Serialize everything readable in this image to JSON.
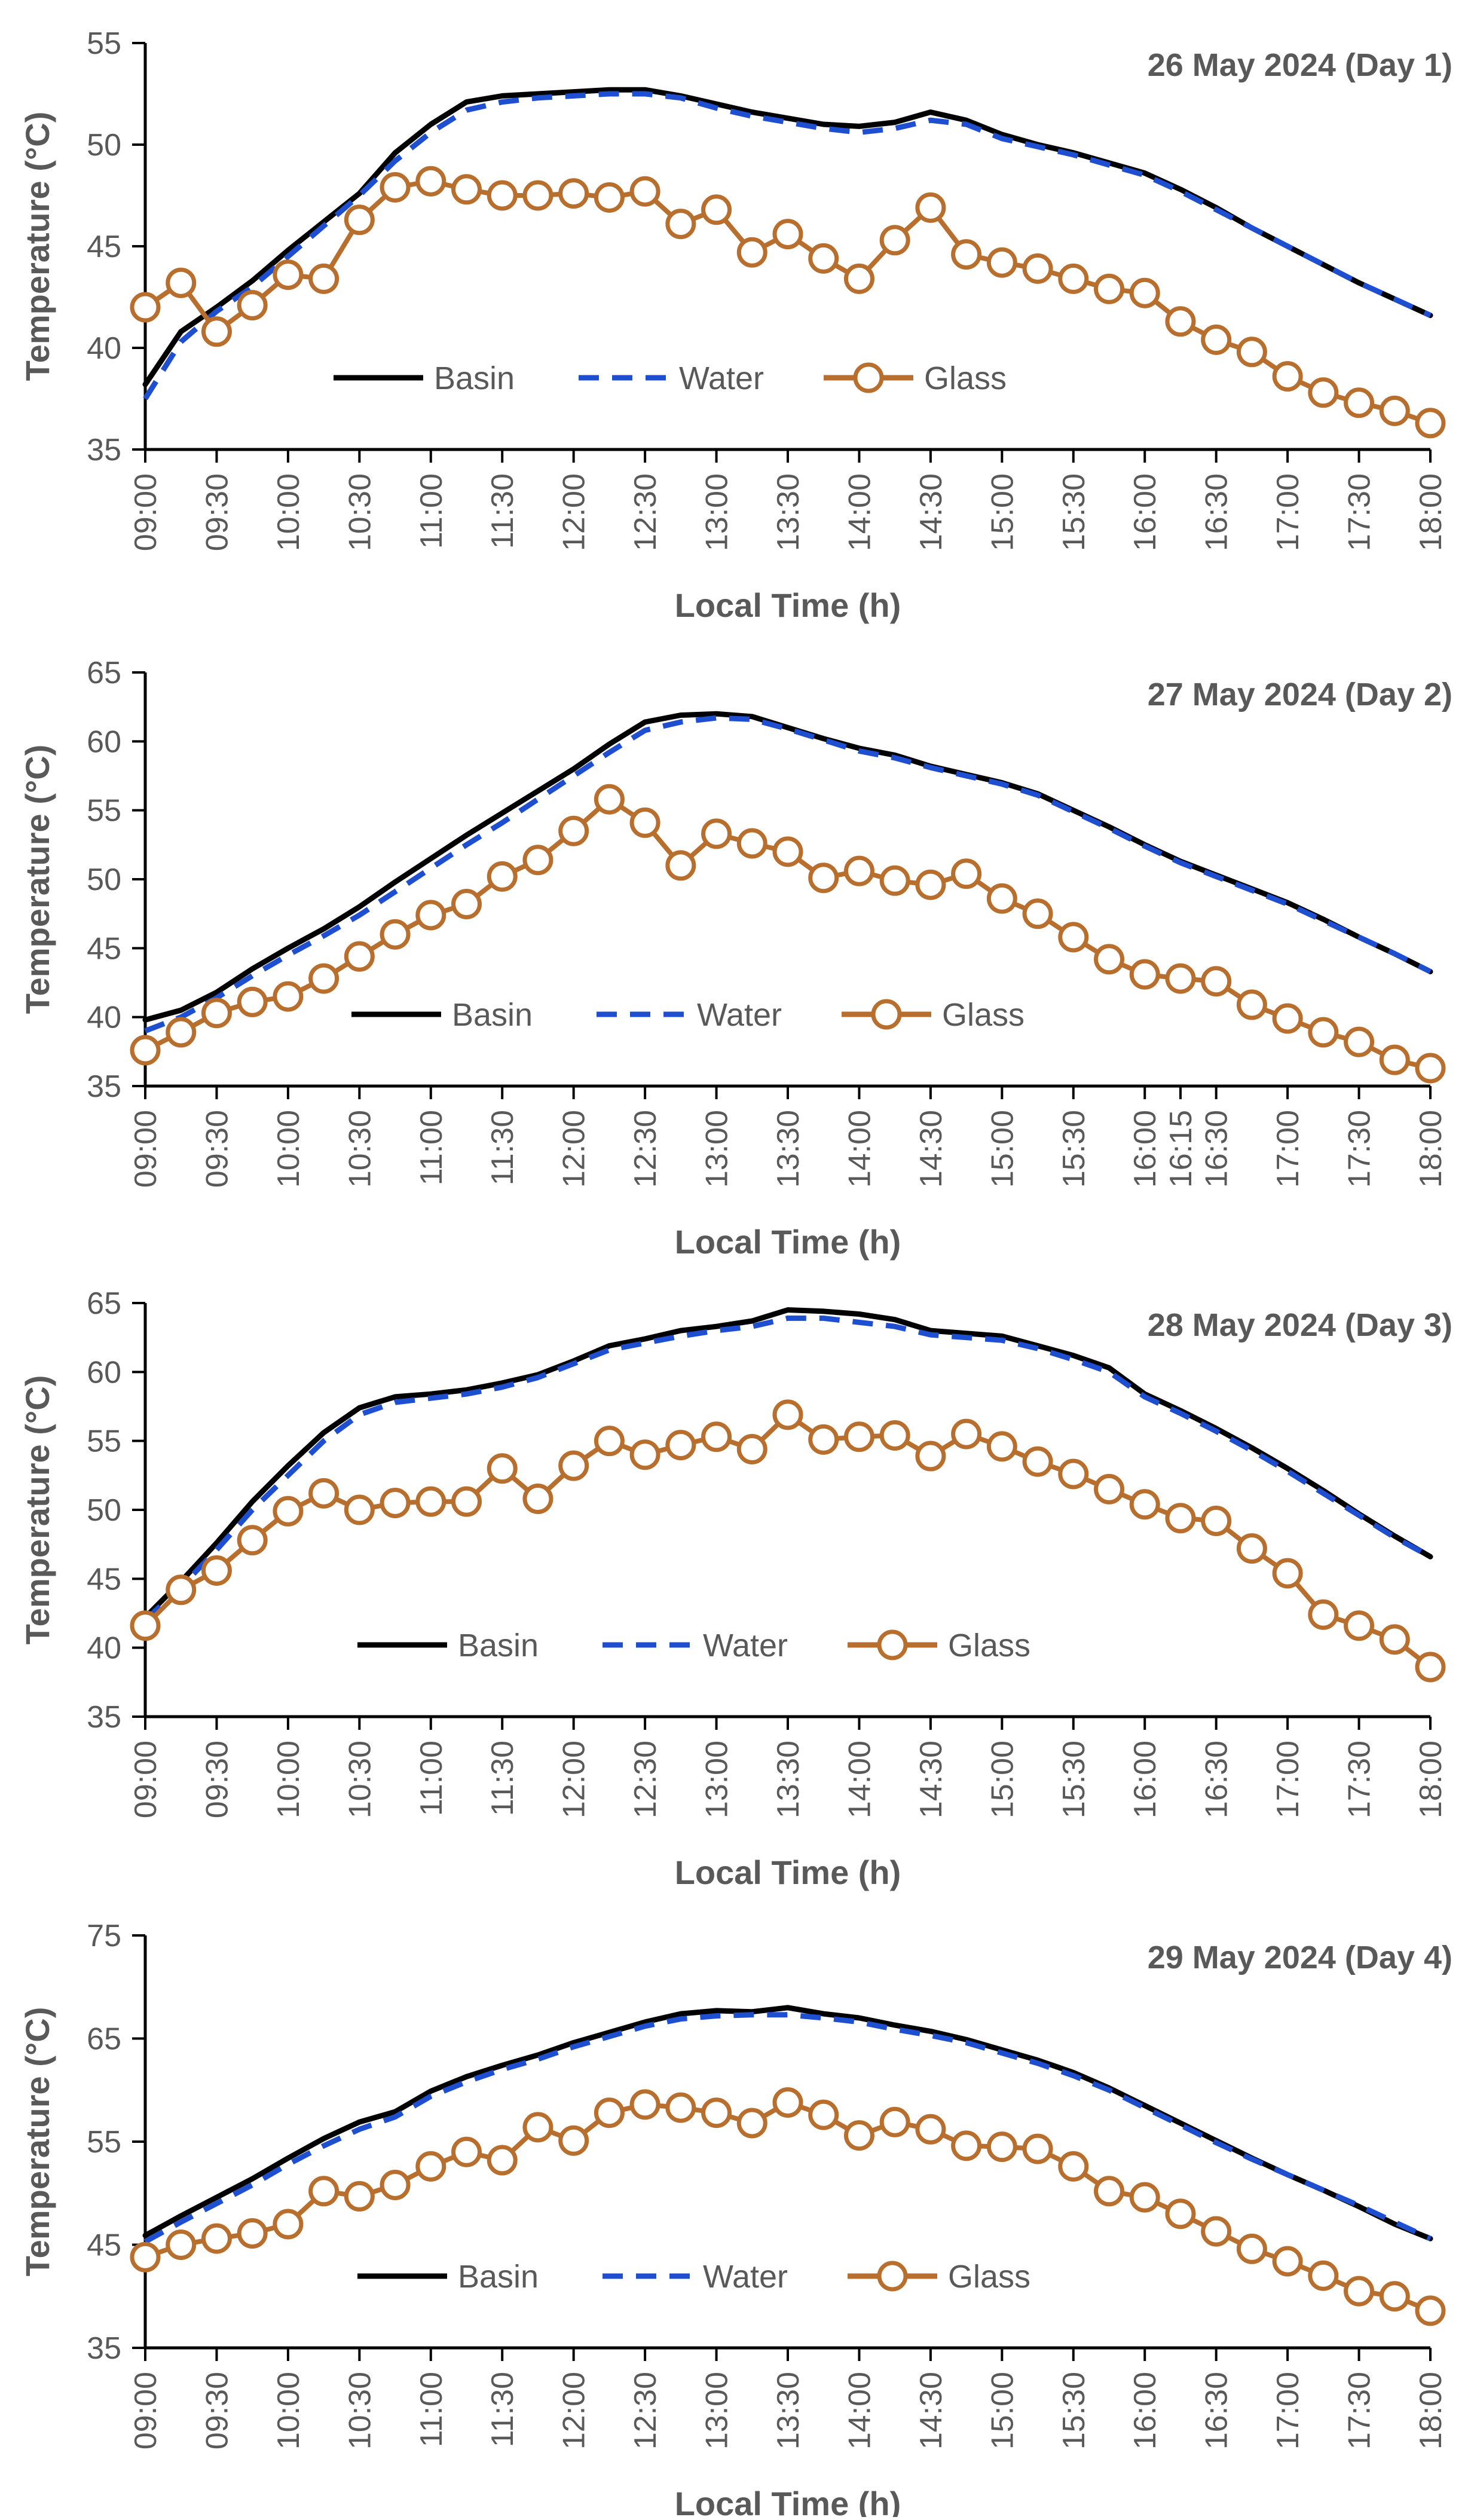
{
  "chart_data": [
    {
      "type": "line",
      "title": "26 May 2024 (Day 1)",
      "xlabel": "Local Time (h)",
      "ylabel": "Temperature (°C)",
      "ylim": [
        35,
        55
      ],
      "yticks": [
        35,
        40,
        45,
        50,
        55
      ],
      "x": [
        "09:00",
        "09:15",
        "09:30",
        "09:45",
        "10:00",
        "10:15",
        "10:30",
        "10:45",
        "11:00",
        "11:15",
        "11:30",
        "11:45",
        "12:00",
        "12:15",
        "12:30",
        "12:45",
        "13:00",
        "13:15",
        "13:30",
        "13:45",
        "14:00",
        "14:15",
        "14:30",
        "14:45",
        "15:00",
        "15:15",
        "15:30",
        "15:45",
        "16:00",
        "16:15",
        "16:30",
        "16:45",
        "17:00",
        "17:15",
        "17:30",
        "17:45",
        "18:00"
      ],
      "xtick_labels": [
        "09:00",
        "09:30",
        "10:00",
        "10:30",
        "11:00",
        "11:30",
        "12:00",
        "12:30",
        "13:00",
        "13:30",
        "14:00",
        "14:30",
        "15:00",
        "15:30",
        "16:00",
        "16:30",
        "17:00",
        "17:30",
        "18:00"
      ],
      "series": [
        {
          "name": "Basin",
          "style": "solid",
          "color": "#000000",
          "values": [
            38.2,
            40.8,
            42.0,
            43.3,
            44.8,
            46.2,
            47.6,
            49.6,
            51.0,
            52.1,
            52.4,
            52.5,
            52.6,
            52.7,
            52.7,
            52.4,
            52.0,
            51.6,
            51.3,
            51.0,
            50.9,
            51.1,
            51.6,
            51.2,
            50.5,
            50.0,
            49.6,
            49.1,
            48.6,
            47.8,
            46.9,
            45.9,
            45.0,
            44.1,
            43.2,
            42.4,
            41.6
          ]
        },
        {
          "name": "Water",
          "style": "dashed",
          "color": "#1F4FD1",
          "values": [
            37.5,
            40.3,
            41.8,
            43.0,
            44.5,
            46.0,
            47.5,
            49.2,
            50.6,
            51.7,
            52.1,
            52.3,
            52.4,
            52.5,
            52.5,
            52.3,
            51.8,
            51.4,
            51.1,
            50.8,
            50.6,
            50.8,
            51.2,
            51.0,
            50.3,
            49.9,
            49.5,
            49.0,
            48.5,
            47.7,
            46.8,
            45.9,
            45.0,
            44.1,
            43.2,
            42.4,
            41.6
          ]
        },
        {
          "name": "Glass",
          "style": "solid-marker",
          "color": "#B86E2C",
          "values": [
            42.0,
            43.2,
            40.8,
            42.1,
            43.6,
            43.4,
            46.3,
            47.9,
            48.2,
            47.8,
            47.5,
            47.5,
            47.6,
            47.4,
            47.7,
            46.1,
            46.8,
            44.7,
            45.6,
            44.4,
            43.4,
            45.3,
            46.9,
            44.6,
            44.2,
            43.9,
            43.4,
            42.9,
            42.7,
            41.3,
            40.4,
            39.8,
            38.6,
            37.8,
            37.3,
            36.9,
            36.3
          ]
        }
      ]
    },
    {
      "type": "line",
      "title": "27 May 2024 (Day 2)",
      "xlabel": "Local Time (h)",
      "ylabel": "Temperature (°C)",
      "ylim": [
        35,
        65
      ],
      "yticks": [
        35,
        40,
        45,
        50,
        55,
        60,
        65
      ],
      "x": [
        "09:00",
        "09:15",
        "09:30",
        "09:45",
        "10:00",
        "10:15",
        "10:30",
        "10:45",
        "11:00",
        "11:15",
        "11:30",
        "11:45",
        "12:00",
        "12:15",
        "12:30",
        "12:45",
        "13:00",
        "13:15",
        "13:30",
        "13:45",
        "14:00",
        "14:15",
        "14:30",
        "14:45",
        "15:00",
        "15:15",
        "15:30",
        "15:45",
        "16:00",
        "16:15",
        "16:30",
        "16:45",
        "17:00",
        "17:15",
        "17:30",
        "17:45",
        "18:00"
      ],
      "xtick_labels": [
        "09:00",
        "09:30",
        "10:00",
        "10:30",
        "11:00",
        "11:30",
        "12:00",
        "12:30",
        "13:00",
        "13:30",
        "14:00",
        "14:30",
        "15:00",
        "15:30",
        "16:00",
        "16:15",
        "16:30",
        "17:00",
        "17:30",
        "18:00"
      ],
      "series": [
        {
          "name": "Basin",
          "style": "solid",
          "color": "#000000",
          "values": [
            39.8,
            40.5,
            41.8,
            43.5,
            45.0,
            46.4,
            48.0,
            49.8,
            51.5,
            53.2,
            54.8,
            56.4,
            58.0,
            59.8,
            61.4,
            61.9,
            62.0,
            61.8,
            61.0,
            60.2,
            59.5,
            59.0,
            58.2,
            57.6,
            57.0,
            56.2,
            55.0,
            53.8,
            52.5,
            51.3,
            50.3,
            49.3,
            48.3,
            47.1,
            45.8,
            44.6,
            43.3
          ]
        },
        {
          "name": "Water",
          "style": "dashed",
          "color": "#1F4FD1",
          "values": [
            39.0,
            40.0,
            41.4,
            43.0,
            44.5,
            45.9,
            47.4,
            49.1,
            50.8,
            52.5,
            54.1,
            55.8,
            57.5,
            59.2,
            60.8,
            61.4,
            61.7,
            61.6,
            60.9,
            60.1,
            59.3,
            58.8,
            58.1,
            57.5,
            56.9,
            56.1,
            54.9,
            53.7,
            52.4,
            51.2,
            50.2,
            49.2,
            48.2,
            47.0,
            45.8,
            44.6,
            43.3
          ]
        },
        {
          "name": "Glass",
          "style": "solid-marker",
          "color": "#B86E2C",
          "values": [
            37.6,
            38.9,
            40.3,
            41.1,
            41.5,
            42.8,
            44.4,
            46.0,
            47.4,
            48.2,
            50.2,
            51.4,
            53.5,
            55.8,
            54.1,
            51.0,
            53.3,
            52.6,
            52.0,
            50.1,
            50.6,
            49.9,
            49.6,
            50.4,
            48.6,
            47.5,
            45.8,
            44.2,
            43.1,
            42.8,
            42.6,
            40.9,
            39.9,
            38.9,
            38.2,
            36.9,
            36.3
          ]
        }
      ]
    },
    {
      "type": "line",
      "title": "28 May 2024 (Day 3)",
      "xlabel": "Local Time (h)",
      "ylabel": "Temperature (°C)",
      "ylim": [
        35,
        65
      ],
      "yticks": [
        35,
        40,
        45,
        50,
        55,
        60,
        65
      ],
      "x": [
        "09:00",
        "09:15",
        "09:30",
        "09:45",
        "10:00",
        "10:15",
        "10:30",
        "10:45",
        "11:00",
        "11:15",
        "11:30",
        "11:45",
        "12:00",
        "12:15",
        "12:30",
        "12:45",
        "13:00",
        "13:15",
        "13:30",
        "13:45",
        "14:00",
        "14:15",
        "14:30",
        "14:45",
        "15:00",
        "15:15",
        "15:30",
        "15:45",
        "16:00",
        "16:15",
        "16:30",
        "16:45",
        "17:00",
        "17:15",
        "17:30",
        "17:45",
        "18:00"
      ],
      "xtick_labels": [
        "09:00",
        "09:30",
        "10:00",
        "10:30",
        "11:00",
        "11:30",
        "12:00",
        "12:30",
        "13:00",
        "13:30",
        "14:00",
        "14:30",
        "15:00",
        "15:30",
        "16:00",
        "16:30",
        "17:00",
        "17:30",
        "18:00"
      ],
      "series": [
        {
          "name": "Basin",
          "style": "solid",
          "color": "#000000",
          "values": [
            42.2,
            44.8,
            47.6,
            50.6,
            53.2,
            55.6,
            57.4,
            58.2,
            58.4,
            58.7,
            59.2,
            59.8,
            60.8,
            61.9,
            62.4,
            63.0,
            63.3,
            63.7,
            64.5,
            64.4,
            64.2,
            63.8,
            63.0,
            62.8,
            62.6,
            61.9,
            61.2,
            60.3,
            58.4,
            57.2,
            55.9,
            54.5,
            53.0,
            51.4,
            49.7,
            48.1,
            46.6
          ]
        },
        {
          "name": "Water",
          "style": "dashed",
          "color": "#1F4FD1",
          "values": [
            42.0,
            44.4,
            47.1,
            50.0,
            52.5,
            55.0,
            56.9,
            57.8,
            58.1,
            58.4,
            58.9,
            59.6,
            60.6,
            61.6,
            62.1,
            62.6,
            63.0,
            63.3,
            63.9,
            63.9,
            63.6,
            63.3,
            62.7,
            62.5,
            62.3,
            61.7,
            60.9,
            60.0,
            58.2,
            57.0,
            55.7,
            54.3,
            52.8,
            51.2,
            49.6,
            48.0,
            46.6
          ]
        },
        {
          "name": "Glass",
          "style": "solid-marker",
          "color": "#B86E2C",
          "values": [
            41.6,
            44.2,
            45.6,
            47.8,
            49.9,
            51.2,
            50.0,
            50.5,
            50.6,
            50.6,
            53.0,
            50.8,
            53.2,
            55.0,
            54.0,
            54.7,
            55.3,
            54.4,
            56.9,
            55.1,
            55.3,
            55.4,
            53.9,
            55.5,
            54.6,
            53.5,
            52.6,
            51.5,
            50.4,
            49.4,
            49.2,
            47.2,
            45.4,
            42.4,
            41.6,
            40.6,
            38.6
          ]
        }
      ]
    },
    {
      "type": "line",
      "title": "29 May 2024 (Day 4)",
      "xlabel": "Local Time (h)",
      "ylabel": "Temperature (°C)",
      "ylim": [
        35,
        75
      ],
      "yticks": [
        35,
        45,
        55,
        65,
        75
      ],
      "x": [
        "09:00",
        "09:15",
        "09:30",
        "09:45",
        "10:00",
        "10:15",
        "10:30",
        "10:45",
        "11:00",
        "11:15",
        "11:30",
        "11:45",
        "12:00",
        "12:15",
        "12:30",
        "12:45",
        "13:00",
        "13:15",
        "13:30",
        "13:45",
        "14:00",
        "14:15",
        "14:30",
        "14:45",
        "15:00",
        "15:15",
        "15:30",
        "15:45",
        "16:00",
        "16:15",
        "16:30",
        "16:45",
        "17:00",
        "17:15",
        "17:30",
        "17:45",
        "18:00"
      ],
      "xtick_labels": [
        "09:00",
        "09:30",
        "10:00",
        "10:30",
        "11:00",
        "11:30",
        "12:00",
        "12:30",
        "13:00",
        "13:30",
        "14:00",
        "14:30",
        "15:00",
        "15:30",
        "16:00",
        "16:30",
        "17:00",
        "17:30",
        "18:00"
      ],
      "series": [
        {
          "name": "Basin",
          "style": "solid",
          "color": "#000000",
          "values": [
            45.9,
            47.8,
            49.6,
            51.4,
            53.4,
            55.3,
            56.9,
            57.9,
            59.9,
            61.3,
            62.4,
            63.4,
            64.6,
            65.6,
            66.6,
            67.4,
            67.7,
            67.6,
            68.0,
            67.4,
            67.0,
            66.3,
            65.7,
            64.9,
            63.9,
            62.9,
            61.7,
            60.2,
            58.5,
            56.8,
            55.1,
            53.4,
            51.8,
            50.3,
            48.7,
            47.0,
            45.6
          ]
        },
        {
          "name": "Water",
          "style": "dashed",
          "color": "#1F4FD1",
          "values": [
            45.3,
            47.2,
            49.0,
            50.8,
            52.8,
            54.6,
            56.2,
            57.4,
            59.4,
            60.8,
            62.0,
            63.0,
            64.2,
            65.2,
            66.2,
            66.9,
            67.2,
            67.3,
            67.3,
            67.0,
            66.6,
            65.9,
            65.3,
            64.6,
            63.6,
            62.6,
            61.4,
            60.0,
            58.3,
            56.6,
            54.9,
            53.3,
            51.8,
            50.3,
            48.8,
            47.2,
            45.6
          ]
        },
        {
          "name": "Glass",
          "style": "solid-marker",
          "color": "#B86E2C",
          "values": [
            43.8,
            45.0,
            45.6,
            46.1,
            47.0,
            50.2,
            49.7,
            50.8,
            52.6,
            54.0,
            53.2,
            56.4,
            55.1,
            57.8,
            58.6,
            58.3,
            57.8,
            56.8,
            58.8,
            57.6,
            55.6,
            56.9,
            56.2,
            54.6,
            54.5,
            54.3,
            52.6,
            50.2,
            49.6,
            48.0,
            46.3,
            44.6,
            43.4,
            42.0,
            40.5,
            40.0,
            38.6
          ]
        }
      ]
    }
  ]
}
